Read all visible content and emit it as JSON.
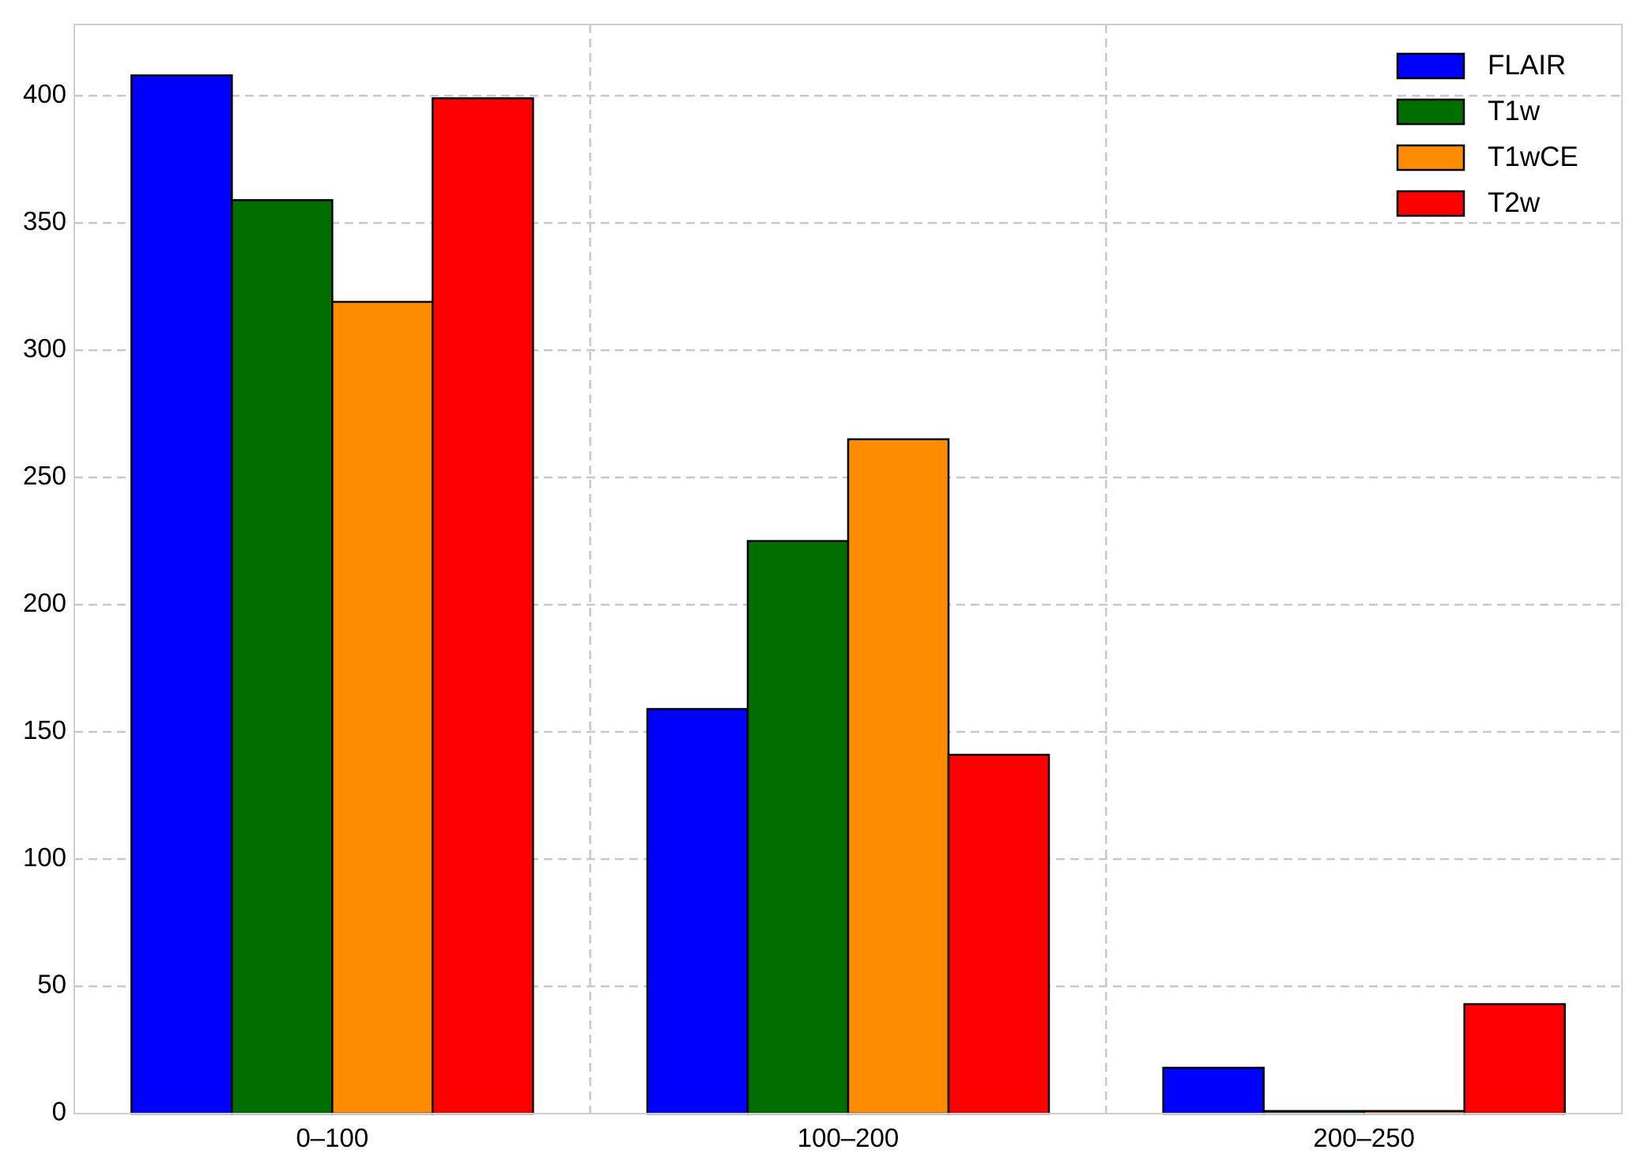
{
  "chart_data": {
    "type": "bar",
    "categories": [
      "0–100",
      "100–200",
      "200–250"
    ],
    "series": [
      {
        "name": "FLAIR",
        "values": [
          408,
          159,
          18
        ],
        "color": "#0000ff"
      },
      {
        "name": "T1w",
        "values": [
          359,
          225,
          1
        ],
        "color": "#006f00"
      },
      {
        "name": "T1wCE",
        "values": [
          319,
          265,
          1
        ],
        "color": "#ff8c00"
      },
      {
        "name": "T2w",
        "values": [
          399,
          141,
          43
        ],
        "color": "#ff0000"
      }
    ],
    "title": "",
    "xlabel": "",
    "ylabel": "",
    "ylim": [
      0,
      428
    ],
    "yticks": [
      0,
      50,
      100,
      150,
      200,
      250,
      300,
      350,
      400
    ],
    "grid": true,
    "legend_position": "top-right"
  }
}
